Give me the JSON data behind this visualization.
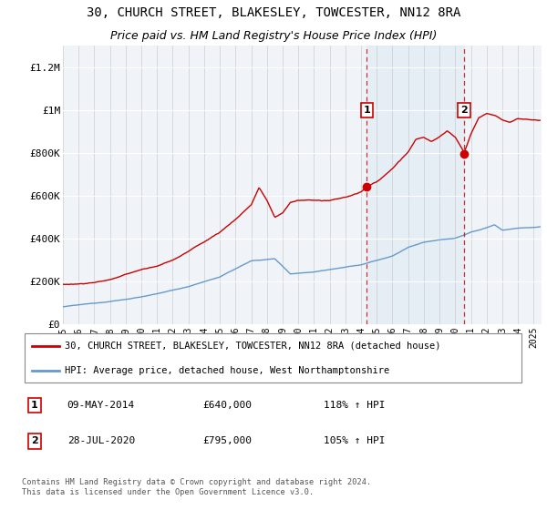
{
  "title": "30, CHURCH STREET, BLAKESLEY, TOWCESTER, NN12 8RA",
  "subtitle": "Price paid vs. HM Land Registry's House Price Index (HPI)",
  "legend_line1": "30, CHURCH STREET, BLAKESLEY, TOWCESTER, NN12 8RA (detached house)",
  "legend_line2": "HPI: Average price, detached house, West Northamptonshire",
  "annotation1_label": "1",
  "annotation1_date": "09-MAY-2014",
  "annotation1_value": "£640,000",
  "annotation1_hpi": "118% ↑ HPI",
  "annotation2_label": "2",
  "annotation2_date": "28-JUL-2020",
  "annotation2_value": "£795,000",
  "annotation2_hpi": "105% ↑ HPI",
  "footnote": "Contains HM Land Registry data © Crown copyright and database right 2024.\nThis data is licensed under the Open Government Licence v3.0.",
  "ylabel_ticks": [
    "£0",
    "£200K",
    "£400K",
    "£600K",
    "£800K",
    "£1M",
    "£1.2M"
  ],
  "ytick_values": [
    0,
    200000,
    400000,
    600000,
    800000,
    1000000,
    1200000
  ],
  "ylim": [
    0,
    1300000
  ],
  "xlim_start": 1995.0,
  "xlim_end": 2025.5,
  "marker1_x": 2014.36,
  "marker1_y": 640000,
  "marker2_x": 2020.57,
  "marker2_y": 795000,
  "red_line_color": "#cc0000",
  "blue_line_color": "#6699cc",
  "vline_color": "#cc0000",
  "background_color": "#ffffff",
  "plot_bg_color": "#f0f4f8",
  "title_fontsize": 10,
  "subtitle_fontsize": 9
}
